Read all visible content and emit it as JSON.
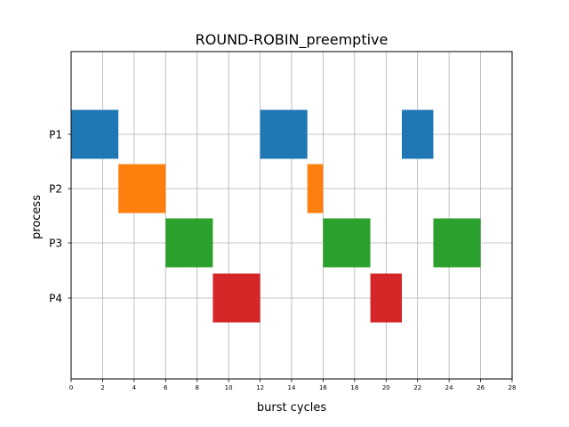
{
  "chart_data": {
    "type": "gantt",
    "title": "ROUND-ROBIN_preemptive",
    "xlabel": "burst cycles",
    "ylabel": "process",
    "xlim": [
      0,
      28
    ],
    "xticks": [
      0,
      2,
      4,
      6,
      8,
      10,
      12,
      14,
      16,
      18,
      20,
      22,
      24,
      26,
      28
    ],
    "categories": [
      "P1",
      "P2",
      "P3",
      "P4"
    ],
    "grid": true,
    "series": [
      {
        "name": "P1",
        "color": "#1f77b4",
        "segments": [
          [
            0,
            3
          ],
          [
            12,
            15
          ],
          [
            21,
            23
          ]
        ]
      },
      {
        "name": "P2",
        "color": "#ff7f0e",
        "segments": [
          [
            3,
            6
          ],
          [
            15,
            16
          ]
        ]
      },
      {
        "name": "P3",
        "color": "#2ca02c",
        "segments": [
          [
            6,
            9
          ],
          [
            16,
            19
          ],
          [
            23,
            26
          ]
        ]
      },
      {
        "name": "P4",
        "color": "#d62728",
        "segments": [
          [
            9,
            12
          ],
          [
            19,
            21
          ]
        ]
      }
    ]
  }
}
